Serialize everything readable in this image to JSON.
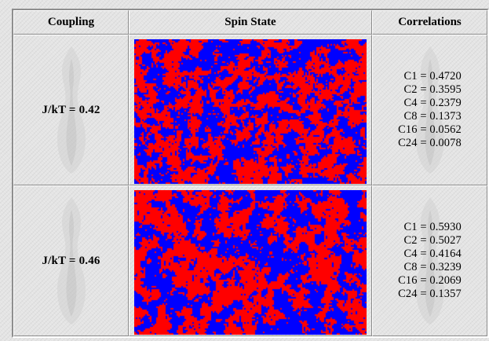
{
  "table": {
    "headers": [
      "Coupling",
      "Spin State",
      "Correlations"
    ],
    "rows": [
      {
        "coupling": "J/kT = 0.42",
        "correlations": [
          "C1 = 0.4720",
          "C2 = 0.3595",
          "C4 = 0.2379",
          "C8 = 0.1373",
          "C16 = 0.0562",
          "C24 = 0.0078"
        ]
      },
      {
        "coupling": "J/kT = 0.46",
        "correlations": [
          "C1 = 0.5930",
          "C2 = 0.5027",
          "C4 = 0.4164",
          "C8 = 0.3239",
          "C16 = 0.2069",
          "C24 = 0.1357"
        ]
      }
    ]
  },
  "colors": {
    "spin_up": "#ff0000",
    "spin_down": "#0000ff",
    "background": "#e4e4e4"
  },
  "icons": {
    "background_motif": "ghost-bottle-icon"
  }
}
